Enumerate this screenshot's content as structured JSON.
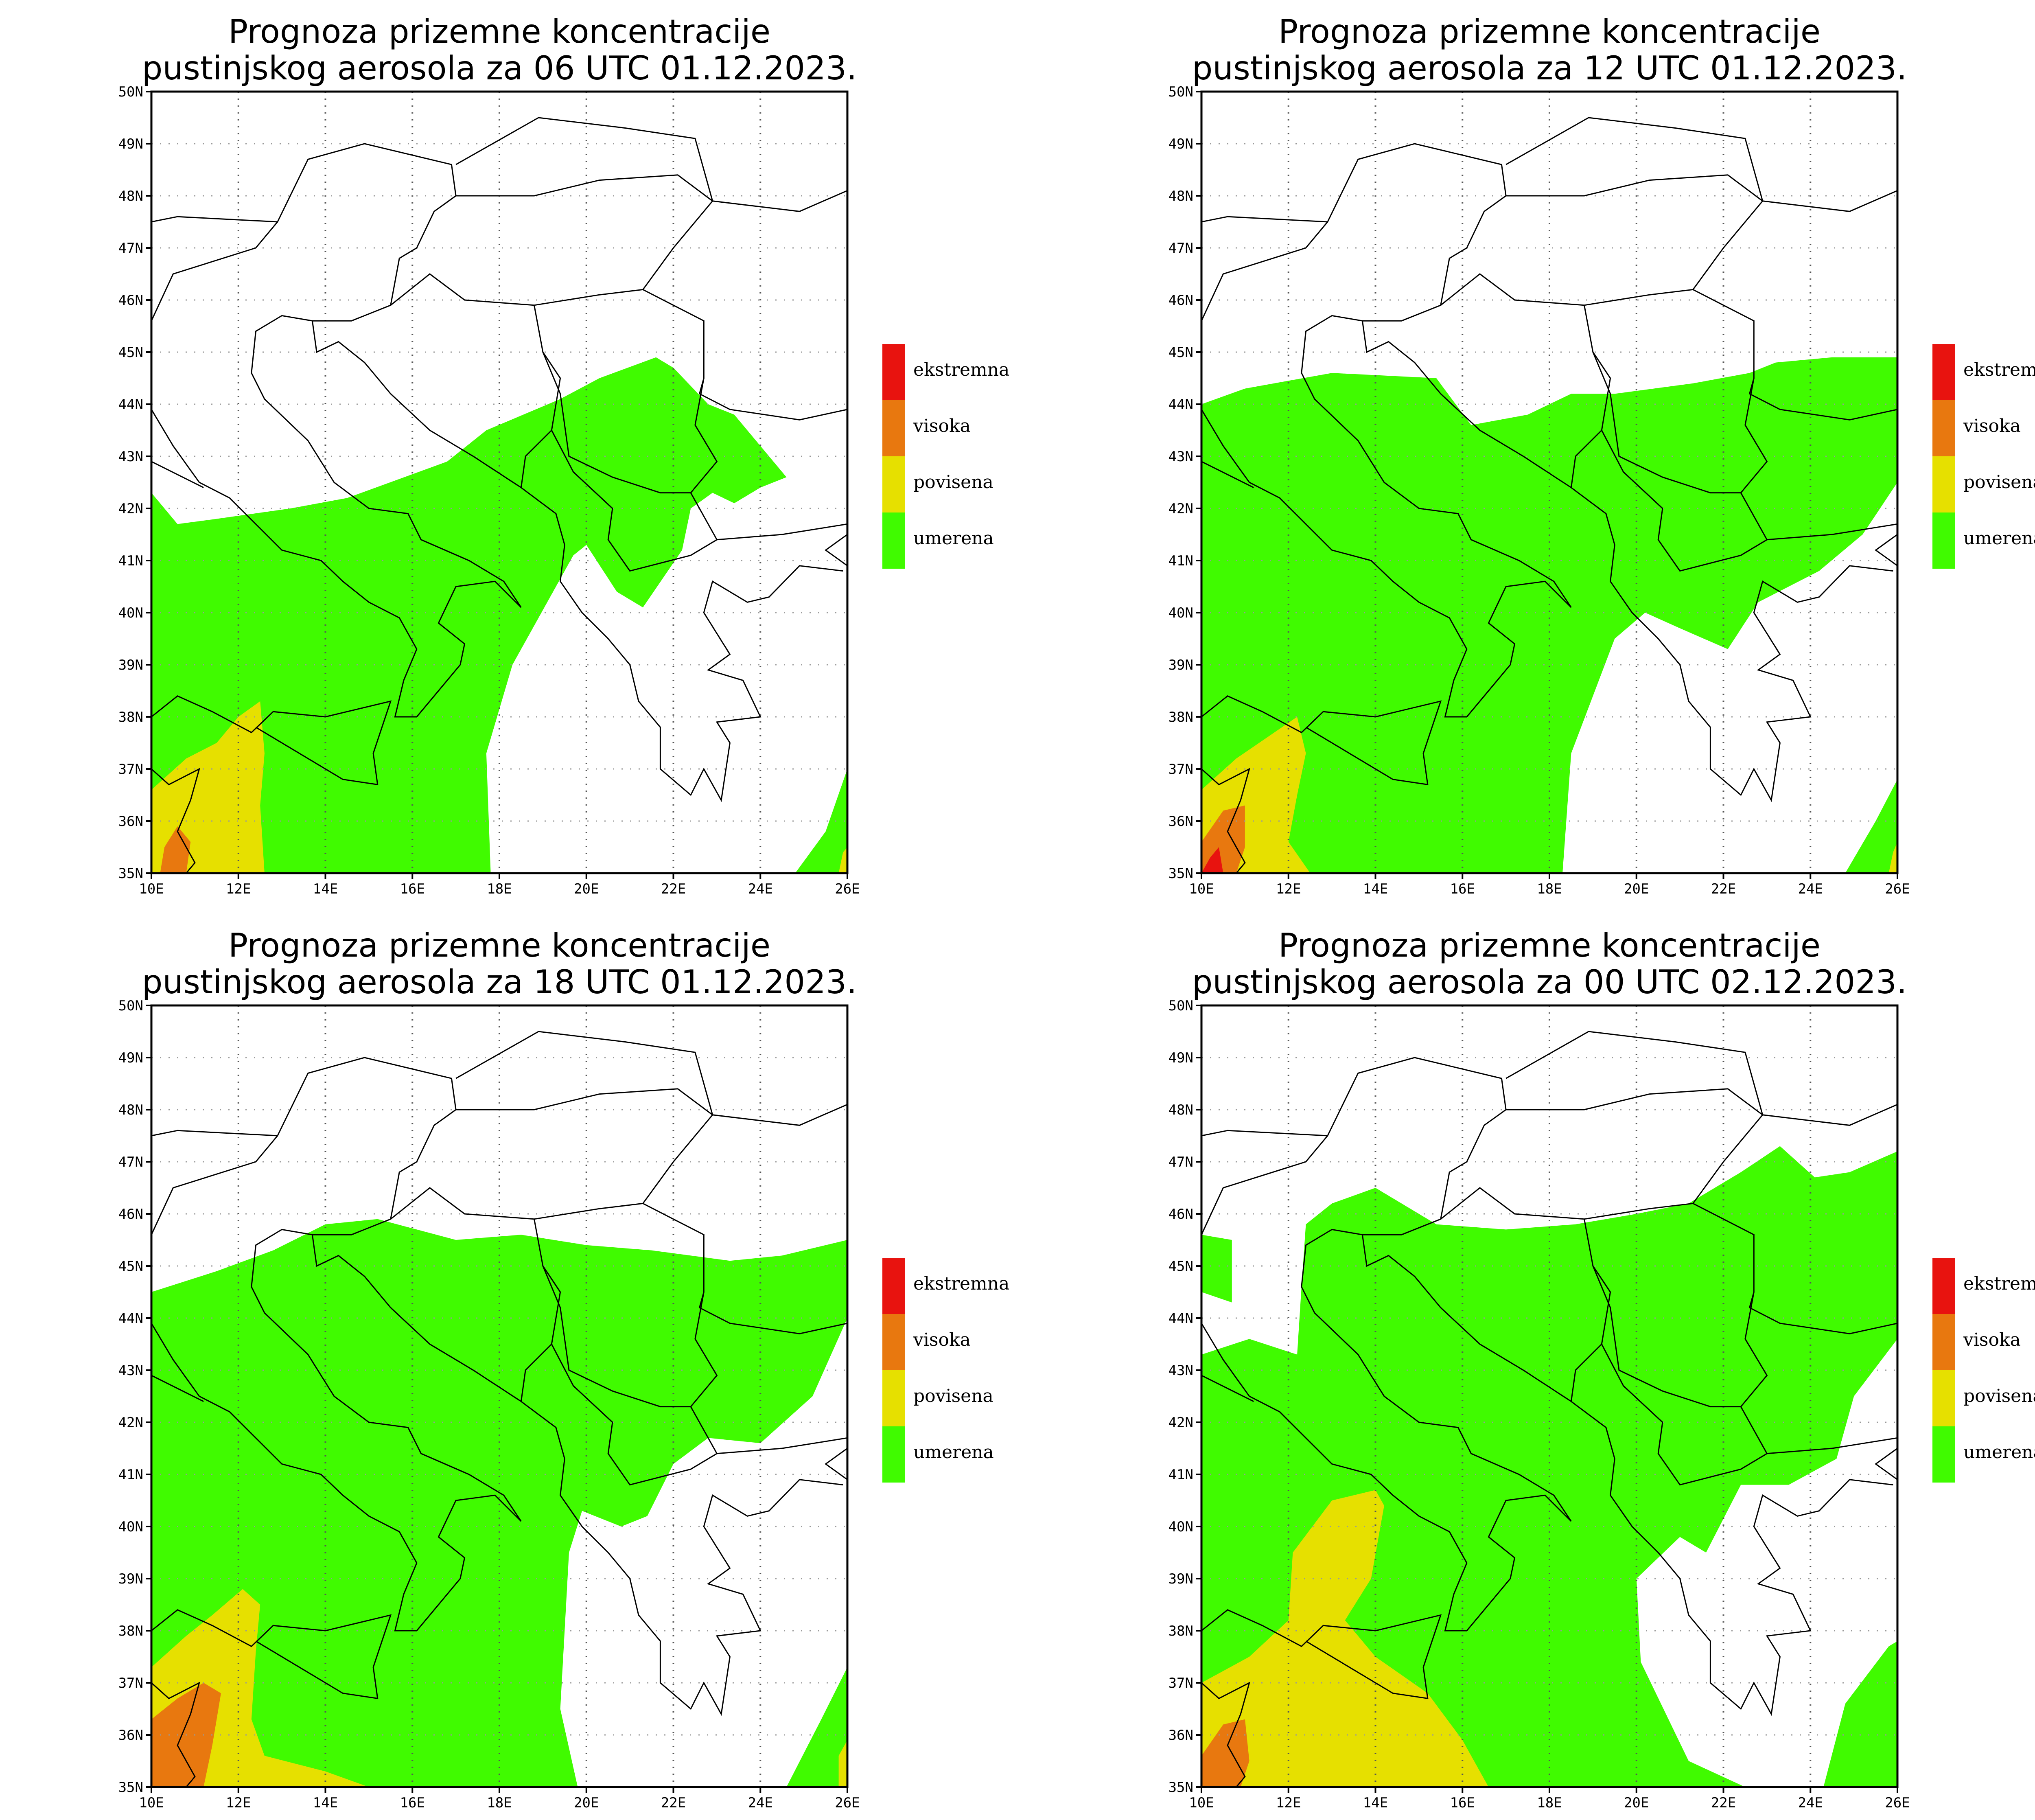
{
  "legend": {
    "items": [
      {
        "label": "ekstremna",
        "color": "#e8130f"
      },
      {
        "label": "visoka",
        "color": "#e8780f"
      },
      {
        "label": "povisena",
        "color": "#e6e000"
      },
      {
        "label": "umerena",
        "color": "#40fb00"
      }
    ]
  },
  "axes": {
    "lat_labels": [
      "50N",
      "49N",
      "48N",
      "47N",
      "46N",
      "45N",
      "44N",
      "43N",
      "42N",
      "41N",
      "40N",
      "39N",
      "38N",
      "37N",
      "36N",
      "35N"
    ],
    "lon_labels": [
      "10E",
      "12E",
      "14E",
      "16E",
      "18E",
      "20E",
      "22E",
      "24E",
      "26E"
    ],
    "lat_range": [
      35,
      50
    ],
    "lon_range": [
      10,
      26
    ]
  },
  "panels": [
    {
      "title_line1": "Prognoza prizemne koncentracije",
      "title_line2": "pustinjskog aerosola za 06 UTC 01.12.2023."
    },
    {
      "title_line1": "Prognoza prizemne koncentracije",
      "title_line2": "pustinjskog aerosola za 12 UTC 01.12.2023."
    },
    {
      "title_line1": "Prognoza prizemne koncentracije",
      "title_line2": "pustinjskog aerosola za 18 UTC 01.12.2023."
    },
    {
      "title_line1": "Prognoza prizemne koncentracije",
      "title_line2": "pustinjskog aerosola za 00 UTC 02.12.2023."
    }
  ]
}
